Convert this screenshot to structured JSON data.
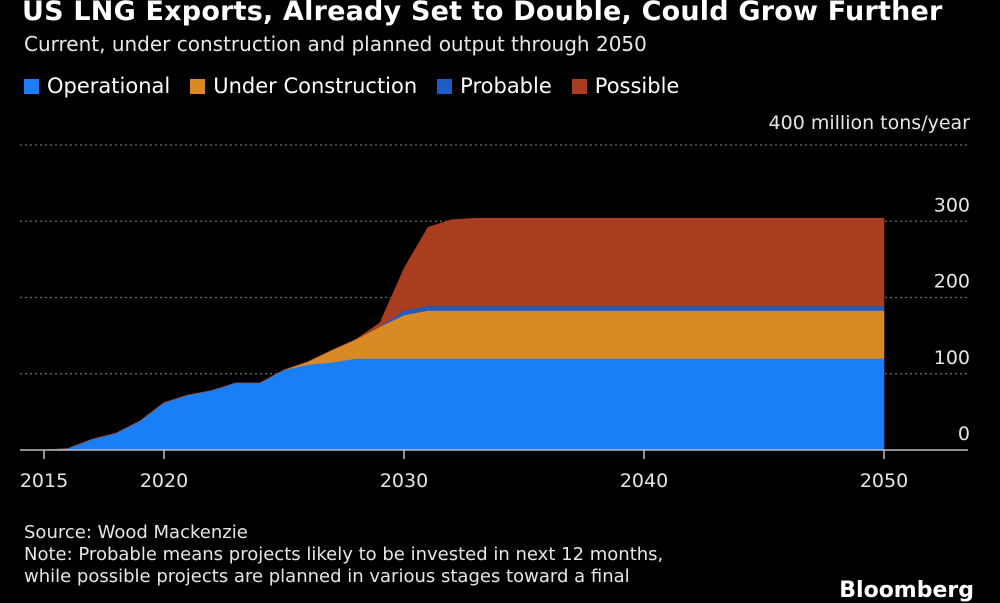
{
  "chart_data": {
    "type": "area",
    "stacked": true,
    "title": "US LNG Exports, Already Set to Double, Could Grow Further",
    "subtitle": "Current, under construction and planned output through 2050",
    "ylabel": "400 million tons/year",
    "ylim": [
      0,
      400
    ],
    "xlim": [
      2014,
      2053.5
    ],
    "grid": true,
    "legend_position": "top-left",
    "y_ticks": [
      {
        "value": 0,
        "label": "0"
      },
      {
        "value": 100,
        "label": "100"
      },
      {
        "value": 200,
        "label": "200"
      },
      {
        "value": 300,
        "label": "300"
      }
    ],
    "x_ticks": [
      {
        "value": 2015,
        "label": "2015"
      },
      {
        "value": 2020,
        "label": "2020"
      },
      {
        "value": 2030,
        "label": "2030"
      },
      {
        "value": 2040,
        "label": "2040"
      },
      {
        "value": 2050,
        "label": "2050"
      }
    ],
    "x": [
      2015,
      2016,
      2017,
      2018,
      2019,
      2020,
      2021,
      2022,
      2023,
      2024,
      2025,
      2026,
      2027,
      2028,
      2029,
      2030,
      2031,
      2032,
      2033,
      2034,
      2040,
      2050
    ],
    "series": [
      {
        "name": "Operational",
        "color": "#1a7ff5",
        "values": [
          0,
          2,
          14,
          22,
          38,
          62,
          72,
          78,
          88,
          88,
          105,
          112,
          115,
          120,
          120,
          120,
          120,
          120,
          120,
          120,
          120,
          120
        ]
      },
      {
        "name": "Under Construction",
        "color": "#d98a25",
        "values": [
          0,
          0,
          0,
          0,
          0,
          0,
          0,
          0,
          0,
          0,
          0,
          4,
          16,
          25,
          42,
          57,
          63,
          63,
          63,
          63,
          63,
          63
        ]
      },
      {
        "name": "Probable",
        "color": "#1f5bc4",
        "values": [
          0,
          0,
          0,
          0,
          0,
          0,
          0,
          0,
          0,
          0,
          0,
          0,
          0,
          0,
          0,
          6,
          6,
          6,
          6,
          6,
          6,
          6
        ]
      },
      {
        "name": "Possible",
        "color": "#a83d20",
        "values": [
          0,
          0,
          0,
          0,
          0,
          0,
          0,
          0,
          0,
          0,
          0,
          0,
          0,
          0,
          5,
          55,
          103,
          113,
          115,
          115,
          115,
          115
        ]
      }
    ]
  },
  "legend": {
    "items": [
      {
        "label": "Operational",
        "color": "#1a7ff5"
      },
      {
        "label": "Under Construction",
        "color": "#d98a25"
      },
      {
        "label": "Probable",
        "color": "#1f5bc4"
      },
      {
        "label": "Possible",
        "color": "#a83d20"
      }
    ]
  },
  "footer": {
    "source": "Source: Wood Mackenzie",
    "note_line1": "Note: Probable means projects likely to be invested in next 12 months,",
    "note_line2": "while possible projects are planned in various stages toward a final"
  },
  "brand": "Bloomberg"
}
